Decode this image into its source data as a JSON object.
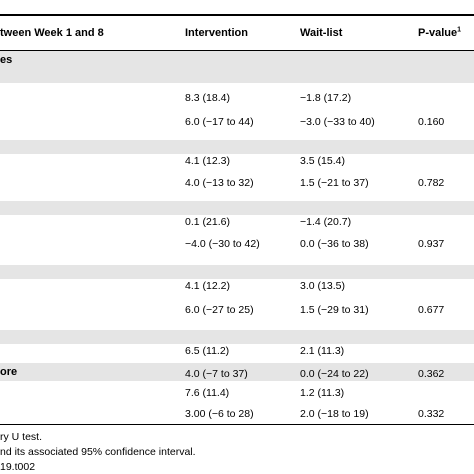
{
  "table": {
    "headers": {
      "first_col": "tween Week 1 and 8",
      "intervention": "Intervention",
      "waitlist": "Wait-list",
      "pvalue": "P-value",
      "pvalue_sup": "1"
    },
    "top_band_label": "es",
    "lower_band_label": "ore",
    "rows": [
      {
        "intervention": "8.3 (18.4)",
        "waitlist": "−1.8 (17.2)",
        "pvalue": ""
      },
      {
        "intervention": "6.0 (−17 to 44)",
        "waitlist": "−3.0 (−33 to 40)",
        "pvalue": "0.160"
      },
      {
        "intervention": "4.1 (12.3)",
        "waitlist": "3.5 (15.4)",
        "pvalue": ""
      },
      {
        "intervention": "4.0 (−13 to 32)",
        "waitlist": "1.5 (−21 to 37)",
        "pvalue": "0.782"
      },
      {
        "intervention": "0.1 (21.6)",
        "waitlist": "−1.4 (20.7)",
        "pvalue": ""
      },
      {
        "intervention": "−4.0 (−30 to 42)",
        "waitlist": "0.0 (−36 to 38)",
        "pvalue": "0.937"
      },
      {
        "intervention": "4.1 (12.2)",
        "waitlist": "3.0 (13.5)",
        "pvalue": ""
      },
      {
        "intervention": "6.0 (−27 to 25)",
        "waitlist": "1.5 (−29 to 31)",
        "pvalue": "0.677"
      },
      {
        "intervention": "6.5 (11.2)",
        "waitlist": "2.1 (11.3)",
        "pvalue": ""
      },
      {
        "intervention": "4.0 (−7 to 37)",
        "waitlist": "0.0 (−24 to 22)",
        "pvalue": "0.362"
      },
      {
        "intervention": "7.6 (11.4)",
        "waitlist": "1.2 (11.3)",
        "pvalue": ""
      },
      {
        "intervention": "3.00 (−6 to 28)",
        "waitlist": "2.0 (−18 to 19)",
        "pvalue": "0.332"
      }
    ]
  },
  "footnotes": [
    "ry U test.",
    "nd its associated 95% confidence interval.",
    "19.t002"
  ]
}
